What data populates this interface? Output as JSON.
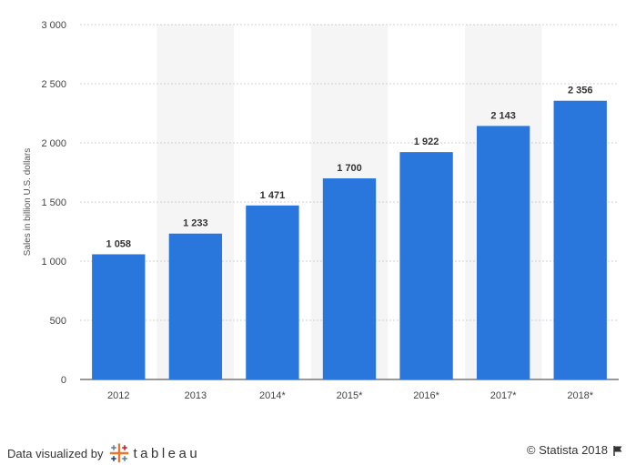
{
  "chart_data": {
    "type": "bar",
    "categories": [
      "2012",
      "2013",
      "2014*",
      "2015*",
      "2016*",
      "2017*",
      "2018*"
    ],
    "values": [
      1058,
      1233,
      1471,
      1700,
      1922,
      2143,
      2356
    ],
    "value_labels": [
      "1 058",
      "1 233",
      "1 471",
      "1 700",
      "1 922",
      "2 143",
      "2 356"
    ],
    "ylabel": "Sales in billion U.S. dollars",
    "ylim": [
      0,
      3000
    ],
    "yticks": [
      0,
      500,
      1000,
      1500,
      2000,
      2500,
      3000
    ],
    "ytick_labels": [
      "0",
      "500",
      "1 000",
      "1 500",
      "2 000",
      "2 500",
      "3 000"
    ],
    "grid": true,
    "legend": "none",
    "bar_color": "#2976dd",
    "band_color": "#f5f5f5"
  },
  "footer": {
    "viz_text": "Data visualized by",
    "logo_word": "tableau",
    "copyright": "© Statista 2018"
  }
}
